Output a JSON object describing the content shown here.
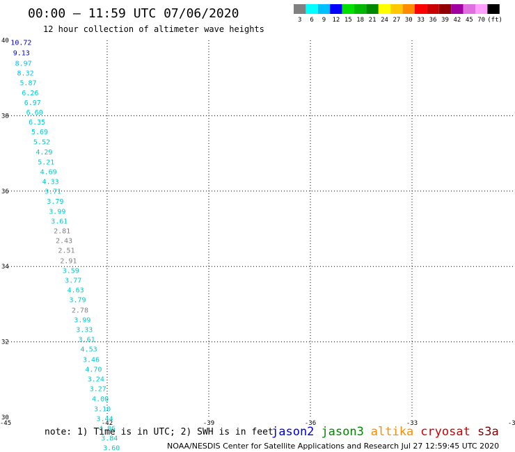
{
  "header": {
    "title": "00:00 – 11:59 UTC 07/06/2020",
    "subtitle": "12 hour collection of altimeter wave heights"
  },
  "colorbar": {
    "colors": [
      "#808080",
      "#00ffff",
      "#00bfff",
      "#0000ff",
      "#00e000",
      "#00b800",
      "#008800",
      "#ffff00",
      "#ffc800",
      "#ff8c00",
      "#ff0000",
      "#c80000",
      "#900000",
      "#a000a0",
      "#e070e0",
      "#ffa0ff",
      "#000000"
    ],
    "labels": [
      "3",
      "6",
      "9",
      "12",
      "15",
      "18",
      "21",
      "24",
      "27",
      "30",
      "33",
      "36",
      "39",
      "42",
      "45",
      "70",
      "(ft)"
    ]
  },
  "footer": {
    "note": "note: 1) Time is in UTC; 2) SWH is in feet",
    "credit": "NOAA/NESDIS Center for Satellite Applications and Research   Jul 27 12:59:45 UTC 2020"
  },
  "legend": [
    {
      "name": "jason2",
      "color": "#0000dd"
    },
    {
      "name": "jason3",
      "color": "#008800"
    },
    {
      "name": "altika",
      "color": "#ff8c00"
    },
    {
      "name": "cryosat",
      "color": "#cc0000"
    },
    {
      "name": "s3a",
      "color": "#800000"
    }
  ],
  "chart_data": {
    "type": "scatter",
    "title": "00:00 – 11:59 UTC 07/06/2020",
    "subtitle": "12 hour collection of altimeter wave heights",
    "xlim": [
      -45,
      -30
    ],
    "ylim": [
      30,
      40
    ],
    "x_ticks": [
      "-45",
      "-42",
      "-39",
      "-36",
      "-33",
      "-30"
    ],
    "y_ticks": [
      "30",
      "32",
      "34",
      "36",
      "38",
      "40"
    ],
    "grid": true,
    "units": "ft",
    "points": [
      {
        "lon": -44.85,
        "lat": 39.88,
        "v": "10.72",
        "c": "#0000dd"
      },
      {
        "lon": -44.78,
        "lat": 39.6,
        "v": "9.13",
        "c": "#0000dd"
      },
      {
        "lon": -44.72,
        "lat": 39.33,
        "v": "8.97",
        "c": "#00bfff"
      },
      {
        "lon": -44.66,
        "lat": 39.07,
        "v": "8.32",
        "c": "#00bfff"
      },
      {
        "lon": -44.58,
        "lat": 38.81,
        "v": "5.87",
        "c": "#00cccc"
      },
      {
        "lon": -44.52,
        "lat": 38.54,
        "v": "6.26",
        "c": "#00cccc"
      },
      {
        "lon": -44.45,
        "lat": 38.28,
        "v": "6.97",
        "c": "#00cccc"
      },
      {
        "lon": -44.39,
        "lat": 38.03,
        "v": "6.60",
        "c": "#00cccc"
      },
      {
        "lon": -44.32,
        "lat": 37.77,
        "v": "6.35",
        "c": "#00cccc"
      },
      {
        "lon": -44.24,
        "lat": 37.51,
        "v": "5.69",
        "c": "#00cccc"
      },
      {
        "lon": -44.18,
        "lat": 37.24,
        "v": "5.52",
        "c": "#00cccc"
      },
      {
        "lon": -44.11,
        "lat": 36.97,
        "v": "4.29",
        "c": "#00cccc"
      },
      {
        "lon": -44.05,
        "lat": 36.71,
        "v": "5.21",
        "c": "#00cccc"
      },
      {
        "lon": -43.98,
        "lat": 36.45,
        "v": "4.69",
        "c": "#00cccc"
      },
      {
        "lon": -43.92,
        "lat": 36.19,
        "v": "4.33",
        "c": "#00cccc"
      },
      {
        "lon": -43.85,
        "lat": 35.93,
        "v": "3.71",
        "c": "#00cccc"
      },
      {
        "lon": -43.78,
        "lat": 35.66,
        "v": "3.79",
        "c": "#00cccc"
      },
      {
        "lon": -43.72,
        "lat": 35.4,
        "v": "3.99",
        "c": "#00cccc"
      },
      {
        "lon": -43.66,
        "lat": 35.14,
        "v": "3.61",
        "c": "#00cccc"
      },
      {
        "lon": -43.58,
        "lat": 34.88,
        "v": "2.81",
        "c": "#808080"
      },
      {
        "lon": -43.52,
        "lat": 34.62,
        "v": "2.43",
        "c": "#808080"
      },
      {
        "lon": -43.45,
        "lat": 34.36,
        "v": "2.51",
        "c": "#808080"
      },
      {
        "lon": -43.39,
        "lat": 34.09,
        "v": "2.91",
        "c": "#808080"
      },
      {
        "lon": -43.32,
        "lat": 33.83,
        "v": "3.59",
        "c": "#00cccc"
      },
      {
        "lon": -43.25,
        "lat": 33.57,
        "v": "3.77",
        "c": "#00cccc"
      },
      {
        "lon": -43.18,
        "lat": 33.31,
        "v": "4.63",
        "c": "#00cccc"
      },
      {
        "lon": -43.12,
        "lat": 33.05,
        "v": "3.79",
        "c": "#00cccc"
      },
      {
        "lon": -43.05,
        "lat": 32.78,
        "v": "2.78",
        "c": "#808080"
      },
      {
        "lon": -42.98,
        "lat": 32.52,
        "v": "3.99",
        "c": "#00cccc"
      },
      {
        "lon": -42.92,
        "lat": 32.26,
        "v": "3.33",
        "c": "#00cccc"
      },
      {
        "lon": -42.85,
        "lat": 32.0,
        "v": "3.61",
        "c": "#00cccc"
      },
      {
        "lon": -42.79,
        "lat": 31.74,
        "v": "4.53",
        "c": "#00cccc"
      },
      {
        "lon": -42.72,
        "lat": 31.47,
        "v": "3.46",
        "c": "#00cccc"
      },
      {
        "lon": -42.65,
        "lat": 31.21,
        "v": "4.70",
        "c": "#00cccc"
      },
      {
        "lon": -42.58,
        "lat": 30.95,
        "v": "3.24",
        "c": "#00cccc"
      },
      {
        "lon": -42.52,
        "lat": 30.69,
        "v": "3.27",
        "c": "#00cccc"
      },
      {
        "lon": -42.45,
        "lat": 30.42,
        "v": "4.00",
        "c": "#00cccc"
      },
      {
        "lon": -42.39,
        "lat": 30.16,
        "v": "3.10",
        "c": "#00cccc"
      },
      {
        "lon": -42.32,
        "lat": 29.9,
        "v": "3.44",
        "c": "#00cccc"
      },
      {
        "lon": -42.25,
        "lat": 29.64,
        "v": "4.86",
        "c": "#00cccc"
      },
      {
        "lon": -42.18,
        "lat": 29.38,
        "v": "3.84",
        "c": "#00cccc"
      },
      {
        "lon": -42.12,
        "lat": 29.12,
        "v": "3.60",
        "c": "#00cccc"
      },
      {
        "lon": -42.05,
        "lat": 28.86,
        "v": "4.63",
        "c": "#00cccc"
      }
    ]
  }
}
